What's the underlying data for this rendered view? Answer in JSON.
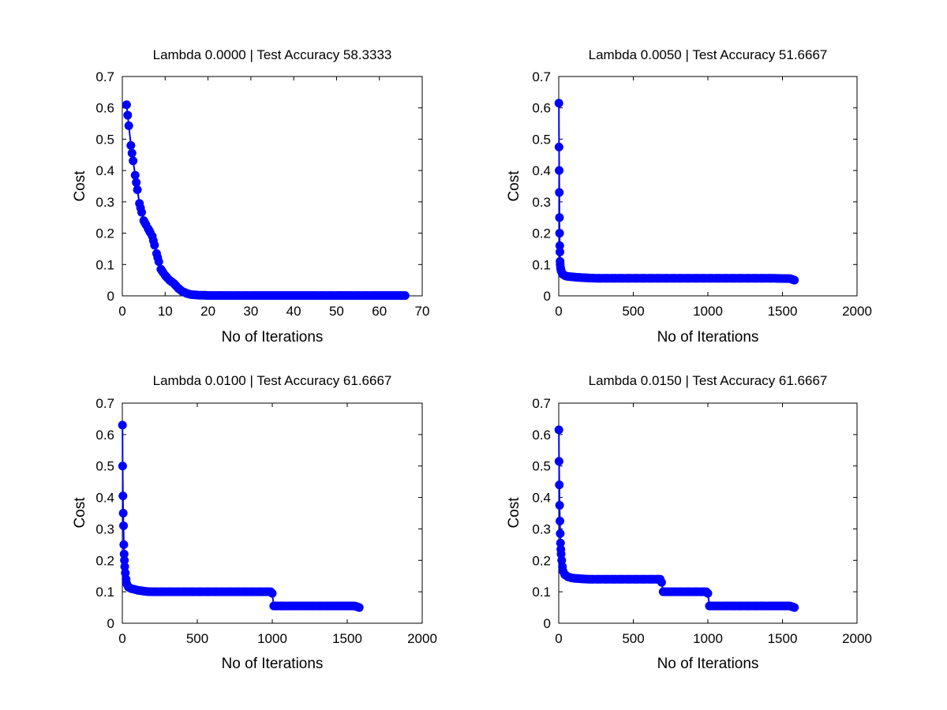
{
  "colors": {
    "series": "#0000ff",
    "axes": "#000000",
    "background": "#ffffff"
  },
  "chart_data": [
    {
      "type": "line",
      "title": "Lambda 0.0000 | Test Accuracy 58.3333",
      "xlabel": "No of Iterations",
      "ylabel": "Cost",
      "xlim": [
        0,
        70
      ],
      "ylim": [
        0,
        0.7
      ],
      "xticks": [
        0,
        10,
        20,
        30,
        40,
        50,
        60,
        70
      ],
      "yticks": [
        0,
        0.1,
        0.2,
        0.3,
        0.4,
        0.5,
        0.6,
        0.7
      ],
      "xtick_labels": [
        "0",
        "10",
        "20",
        "30",
        "40",
        "50",
        "60",
        "70"
      ],
      "ytick_labels": [
        "0",
        "0.1",
        "0.2",
        "0.3",
        "0.4",
        "0.5",
        "0.6",
        "0.7"
      ],
      "grid": false,
      "markers": true,
      "series": [
        {
          "x": [
            1,
            2,
            3,
            4,
            5,
            6,
            7,
            8,
            9,
            10,
            11,
            12,
            13,
            14,
            15,
            16,
            17,
            18,
            19,
            20,
            22,
            24,
            26,
            28,
            30,
            32,
            34,
            36,
            38,
            40,
            42,
            44,
            46,
            48,
            50,
            52,
            54,
            56,
            58,
            60,
            62,
            64,
            66
          ],
          "values": [
            0.61,
            0.48,
            0.385,
            0.295,
            0.24,
            0.215,
            0.19,
            0.135,
            0.085,
            0.065,
            0.05,
            0.04,
            0.025,
            0.014,
            0.008,
            0.004,
            0.003,
            0.002,
            0.002,
            0.001,
            0.001,
            0.001,
            0.001,
            0.001,
            0.001,
            0.001,
            0.001,
            0.001,
            0.001,
            0.001,
            0.001,
            0.001,
            0.001,
            0.001,
            0.001,
            0.001,
            0.001,
            0.001,
            0.001,
            0.001,
            0.001,
            0.001,
            0.001
          ]
        }
      ]
    },
    {
      "type": "line",
      "title": "Lambda 0.0050 | Test Accuracy 51.6667",
      "xlabel": "No of Iterations",
      "ylabel": "Cost",
      "xlim": [
        0,
        2000
      ],
      "ylim": [
        0,
        0.7
      ],
      "xticks": [
        0,
        500,
        1000,
        1500,
        2000
      ],
      "yticks": [
        0,
        0.1,
        0.2,
        0.3,
        0.4,
        0.5,
        0.6,
        0.7
      ],
      "xtick_labels": [
        "0",
        "500",
        "1000",
        "1500",
        "2000"
      ],
      "ytick_labels": [
        "0",
        "0.1",
        "0.2",
        "0.3",
        "0.4",
        "0.5",
        "0.6",
        "0.7"
      ],
      "grid": false,
      "markers": true,
      "series": [
        {
          "x": [
            1,
            2,
            3,
            4,
            5,
            6,
            7,
            8,
            9,
            10,
            12,
            14,
            16,
            20,
            25,
            30,
            40,
            50,
            60,
            80,
            100,
            130,
            160,
            200,
            250,
            300,
            350,
            400,
            450,
            500,
            550,
            600,
            650,
            700,
            750,
            800,
            850,
            900,
            950,
            1000,
            1050,
            1100,
            1150,
            1200,
            1250,
            1300,
            1350,
            1400,
            1450,
            1500,
            1550,
            1580
          ],
          "values": [
            0.615,
            0.475,
            0.4,
            0.33,
            0.25,
            0.2,
            0.16,
            0.14,
            0.11,
            0.1,
            0.09,
            0.085,
            0.08,
            0.075,
            0.07,
            0.068,
            0.065,
            0.063,
            0.062,
            0.061,
            0.06,
            0.059,
            0.058,
            0.057,
            0.056,
            0.056,
            0.056,
            0.056,
            0.056,
            0.056,
            0.056,
            0.056,
            0.056,
            0.056,
            0.056,
            0.056,
            0.056,
            0.056,
            0.056,
            0.056,
            0.056,
            0.056,
            0.056,
            0.056,
            0.056,
            0.056,
            0.056,
            0.056,
            0.056,
            0.055,
            0.055,
            0.05
          ]
        }
      ]
    },
    {
      "type": "line",
      "title": "Lambda 0.0100 | Test Accuracy 61.6667",
      "xlabel": "No of Iterations",
      "ylabel": "Cost",
      "xlim": [
        0,
        2000
      ],
      "ylim": [
        0,
        0.7
      ],
      "xticks": [
        0,
        500,
        1000,
        1500,
        2000
      ],
      "yticks": [
        0,
        0.1,
        0.2,
        0.3,
        0.4,
        0.5,
        0.6,
        0.7
      ],
      "xtick_labels": [
        "0",
        "500",
        "1000",
        "1500",
        "2000"
      ],
      "ytick_labels": [
        "0",
        "0.1",
        "0.2",
        "0.3",
        "0.4",
        "0.5",
        "0.6",
        "0.7"
      ],
      "grid": false,
      "markers": true,
      "series": [
        {
          "x": [
            1,
            2,
            4,
            6,
            8,
            10,
            12,
            14,
            16,
            20,
            25,
            30,
            40,
            60,
            80,
            100,
            130,
            160,
            200,
            250,
            300,
            350,
            400,
            450,
            500,
            550,
            600,
            650,
            700,
            750,
            800,
            850,
            900,
            950,
            990,
            1000,
            1010,
            1050,
            1100,
            1150,
            1200,
            1250,
            1300,
            1350,
            1400,
            1450,
            1500,
            1550,
            1580
          ],
          "values": [
            0.63,
            0.5,
            0.405,
            0.35,
            0.31,
            0.25,
            0.22,
            0.2,
            0.18,
            0.16,
            0.14,
            0.125,
            0.115,
            0.11,
            0.108,
            0.105,
            0.103,
            0.101,
            0.1,
            0.1,
            0.1,
            0.1,
            0.1,
            0.1,
            0.1,
            0.1,
            0.1,
            0.1,
            0.1,
            0.1,
            0.1,
            0.1,
            0.1,
            0.1,
            0.1,
            0.095,
            0.055,
            0.055,
            0.055,
            0.055,
            0.055,
            0.055,
            0.055,
            0.055,
            0.055,
            0.055,
            0.055,
            0.055,
            0.05
          ]
        }
      ]
    },
    {
      "type": "line",
      "title": "Lambda 0.0150 | Test Accuracy 61.6667",
      "xlabel": "No of Iterations",
      "ylabel": "Cost",
      "xlim": [
        0,
        2000
      ],
      "ylim": [
        0,
        0.7
      ],
      "xticks": [
        0,
        500,
        1000,
        1500,
        2000
      ],
      "yticks": [
        0,
        0.1,
        0.2,
        0.3,
        0.4,
        0.5,
        0.6,
        0.7
      ],
      "xtick_labels": [
        "0",
        "500",
        "1000",
        "1500",
        "2000"
      ],
      "ytick_labels": [
        "0",
        "0.1",
        "0.2",
        "0.3",
        "0.4",
        "0.5",
        "0.6",
        "0.7"
      ],
      "grid": false,
      "markers": true,
      "series": [
        {
          "x": [
            1,
            2,
            4,
            6,
            8,
            10,
            12,
            14,
            16,
            20,
            25,
            30,
            40,
            60,
            80,
            100,
            130,
            160,
            200,
            250,
            300,
            350,
            400,
            450,
            500,
            550,
            600,
            650,
            680,
            690,
            700,
            750,
            800,
            850,
            900,
            950,
            990,
            1000,
            1010,
            1050,
            1100,
            1150,
            1200,
            1250,
            1300,
            1350,
            1400,
            1450,
            1500,
            1550,
            1580
          ],
          "values": [
            0.615,
            0.515,
            0.44,
            0.375,
            0.325,
            0.285,
            0.255,
            0.235,
            0.22,
            0.2,
            0.18,
            0.165,
            0.155,
            0.148,
            0.145,
            0.143,
            0.142,
            0.141,
            0.14,
            0.14,
            0.14,
            0.14,
            0.14,
            0.14,
            0.14,
            0.14,
            0.14,
            0.14,
            0.14,
            0.13,
            0.1,
            0.1,
            0.1,
            0.1,
            0.1,
            0.1,
            0.1,
            0.095,
            0.055,
            0.055,
            0.055,
            0.055,
            0.055,
            0.055,
            0.055,
            0.055,
            0.055,
            0.055,
            0.055,
            0.055,
            0.05
          ]
        }
      ]
    }
  ]
}
